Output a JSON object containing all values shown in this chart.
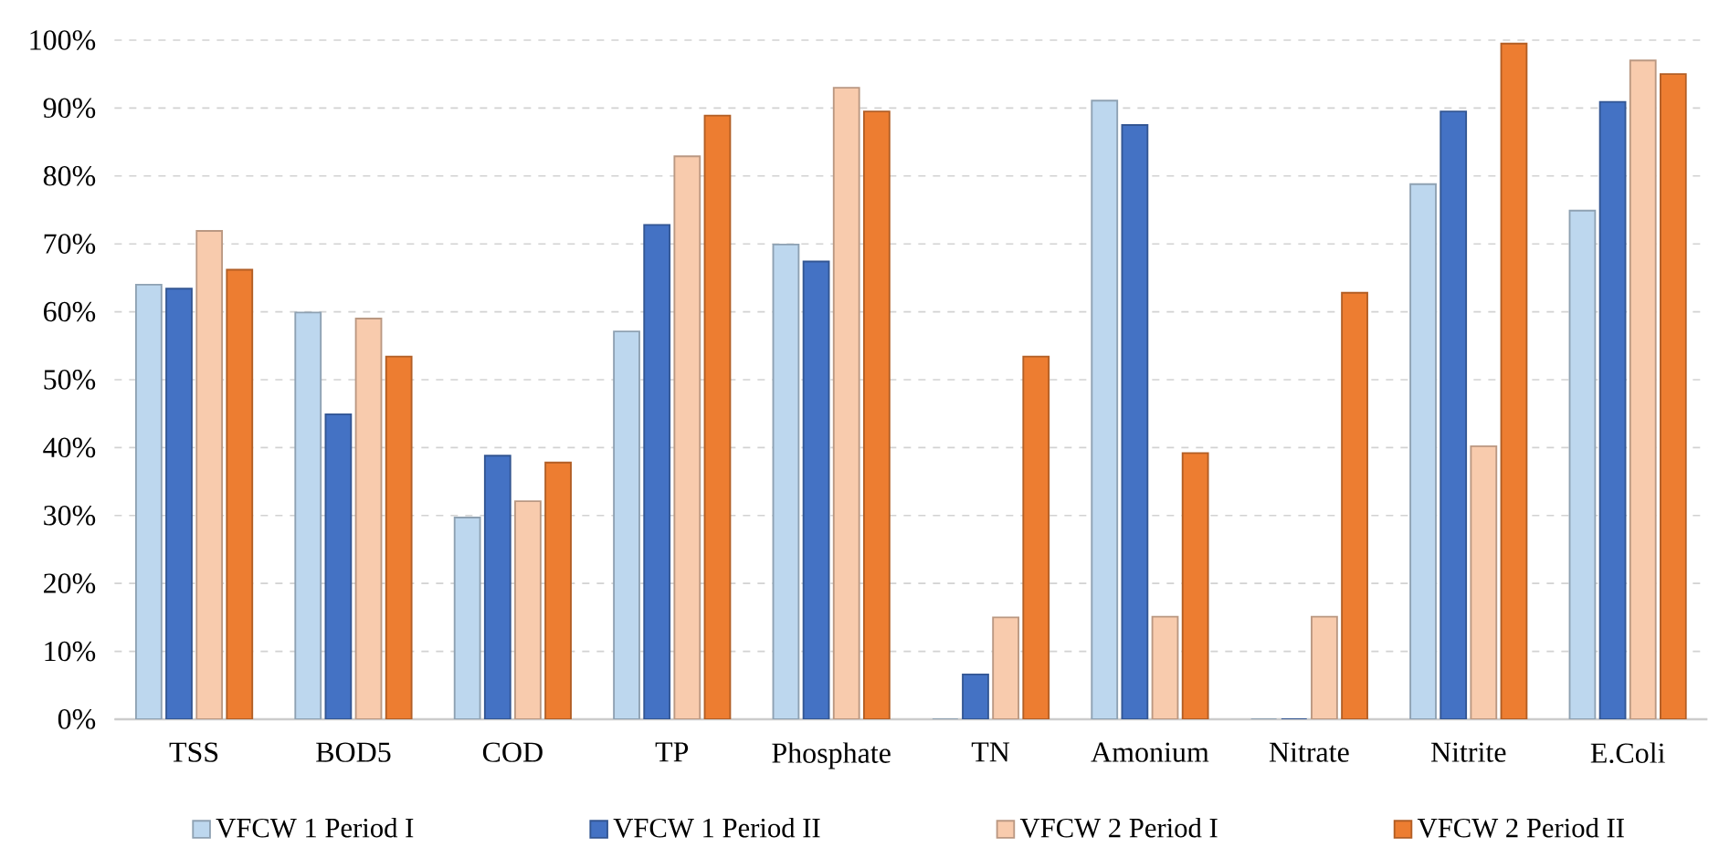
{
  "chart_data": {
    "type": "bar",
    "categories": [
      "TSS",
      "BOD5",
      "COD",
      "TP",
      "Phosphate",
      "TN",
      "Amonium",
      "Nitrate",
      "Nitrite",
      "E.Coli"
    ],
    "series": [
      {
        "name": "VFCW  1 Period I",
        "color": "#bdd7ee",
        "values": [
          64.0,
          59.9,
          29.7,
          57.1,
          69.9,
          0,
          91.1,
          0,
          78.8,
          74.9
        ]
      },
      {
        "name": "VFCW  1 Period II",
        "color": "#4472c4",
        "values": [
          63.4,
          44.9,
          38.8,
          72.8,
          67.4,
          6.6,
          87.5,
          0,
          89.5,
          90.9
        ]
      },
      {
        "name": "VFCW  2 Period I",
        "color": "#f8cbad",
        "values": [
          71.9,
          59.0,
          32.1,
          82.9,
          93.0,
          15.0,
          15.1,
          15.1,
          40.2,
          97.0
        ]
      },
      {
        "name": "VFCW  2 Period II",
        "color": "#ed7d31",
        "values": [
          66.2,
          53.4,
          37.8,
          88.9,
          89.5,
          53.4,
          39.2,
          62.8,
          99.5,
          95.0
        ]
      }
    ],
    "ylim": [
      0,
      100
    ],
    "yticks": [
      {
        "value": 0,
        "label": "0%"
      },
      {
        "value": 10,
        "label": "10%"
      },
      {
        "value": 20,
        "label": "20%"
      },
      {
        "value": 30,
        "label": "30%"
      },
      {
        "value": 40,
        "label": "40%"
      },
      {
        "value": 50,
        "label": "50%"
      },
      {
        "value": 60,
        "label": "60%"
      },
      {
        "value": 70,
        "label": "70%"
      },
      {
        "value": 80,
        "label": "80%"
      },
      {
        "value": 90,
        "label": "90%"
      },
      {
        "value": 100,
        "label": "100%"
      }
    ],
    "grid": "y",
    "legend": "bottom"
  }
}
